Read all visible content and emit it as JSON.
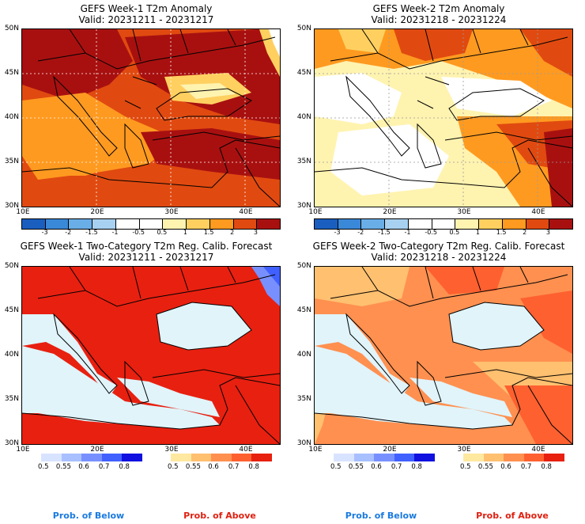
{
  "panels": [
    {
      "title1": "GEFS Week-1 T2m Anomaly",
      "title2": "Valid: 20231211 - 20231217"
    },
    {
      "title1": "GEFS Week-2 T2m Anomaly",
      "title2": "Valid: 20231218 - 20231224"
    },
    {
      "title1": "GEFS Week-1 Two-Category T2m Reg. Calib. Forecast",
      "title2": "Valid: 20231211 - 20231217"
    },
    {
      "title1": "GEFS Week-2 Two-Category T2m Reg. Calib. Forecast",
      "title2": "Valid: 20231218 - 20231224"
    }
  ],
  "axes": {
    "lat": [
      "50N",
      "45N",
      "40N",
      "35N",
      "30N"
    ],
    "lon": [
      "10E",
      "20E",
      "30E",
      "40E"
    ]
  },
  "anomaly_scale": {
    "labels": [
      "-3",
      "-2",
      "-1.5",
      "-1",
      "-0.5",
      "0.5",
      "1",
      "1.5",
      "2",
      "3"
    ],
    "colors": [
      "#1a5fc0",
      "#3a88d8",
      "#6aaee8",
      "#a8d0f0",
      "#ffffff",
      "#ffffff",
      "#fff3b0",
      "#ffd060",
      "#ff9a20",
      "#e04a10",
      "#a81010"
    ]
  },
  "prob_scale": {
    "labels": [
      "0.5",
      "0.55",
      "0.6",
      "0.7",
      "0.8"
    ],
    "below_colors": [
      "#d8e4ff",
      "#a8c0ff",
      "#7890ff",
      "#4060ff",
      "#1010e0"
    ],
    "above_colors": [
      "#ffe8a0",
      "#ffc070",
      "#ff9050",
      "#ff6030",
      "#e82010"
    ]
  },
  "footer": {
    "below": "Prob. of Below",
    "above": "Prob. of Above",
    "below_color": "#1a7ae0",
    "above_color": "#e02010"
  }
}
